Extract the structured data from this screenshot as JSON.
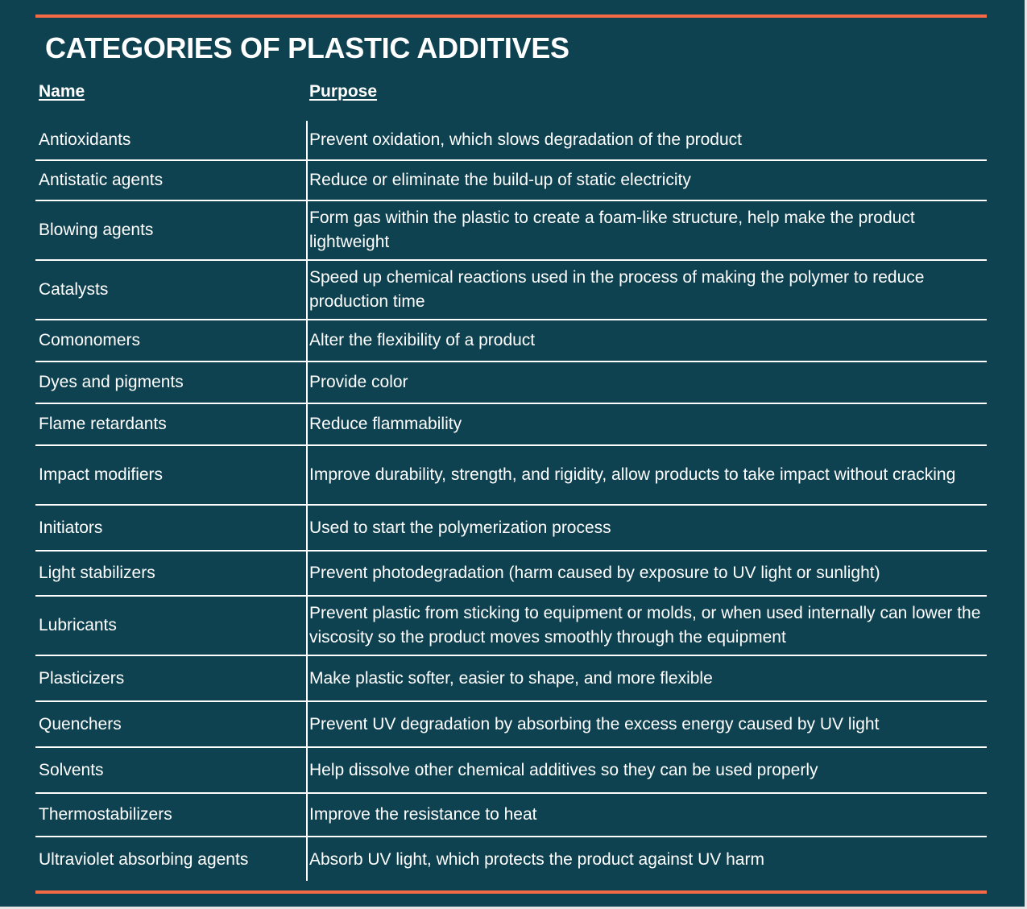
{
  "title": "CATEGORIES OF PLASTIC ADDITIVES",
  "columns": {
    "name": "Name",
    "purpose": "Purpose"
  },
  "rows": [
    {
      "name": "Antioxidants",
      "purpose": "Prevent oxidation, which slows degradation of the product"
    },
    {
      "name": "Antistatic agents",
      "purpose": "Reduce or eliminate the build-up of static electricity"
    },
    {
      "name": "Blowing agents",
      "purpose": "Form gas within the plastic to create a foam-like structure, help make the product lightweight"
    },
    {
      "name": "Catalysts",
      "purpose": "Speed up chemical reactions used in the process of making the polymer to reduce production time"
    },
    {
      "name": "Comonomers",
      "purpose": "Alter the flexibility of a product"
    },
    {
      "name": "Dyes and pigments",
      "purpose": "Provide color"
    },
    {
      "name": "Flame retardants",
      "purpose": "Reduce flammability"
    },
    {
      "name": "Impact modifiers",
      "purpose": "Improve durability, strength, and rigidity, allow products to take impact without cracking"
    },
    {
      "name": "Initiators",
      "purpose": "Used to start the polymerization process"
    },
    {
      "name": "Light stabilizers",
      "purpose": "Prevent photodegradation (harm caused by exposure to UV light or sunlight)"
    },
    {
      "name": "Lubricants",
      "purpose": "Prevent plastic from sticking to equipment or molds, or when used internally can lower the viscosity so the product moves smoothly through the equipment"
    },
    {
      "name": "Plasticizers",
      "purpose": "Make plastic softer, easier to shape, and more flexible"
    },
    {
      "name": "Quenchers",
      "purpose": "Prevent UV degradation by absorbing the excess energy caused by UV light"
    },
    {
      "name": "Solvents",
      "purpose": "Help dissolve other chemical additives so they can be used properly"
    },
    {
      "name": "Thermostabilizers",
      "purpose": "Improve the resistance to heat"
    },
    {
      "name": "Ultraviolet absorbing agents",
      "purpose": "Absorb UV light, which protects the product against UV harm"
    }
  ],
  "colors": {
    "background": "#0f4250",
    "accent_rule": "#f36a45",
    "text": "#ffffff"
  }
}
